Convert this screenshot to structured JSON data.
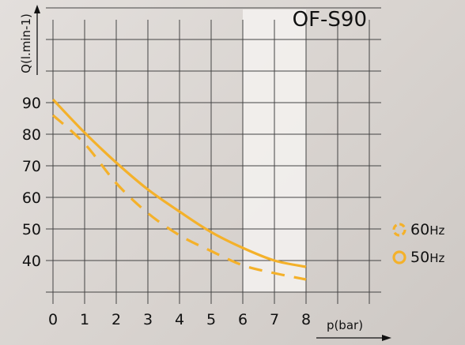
{
  "chart_data": {
    "type": "line",
    "title": "OF-S90",
    "xlabel": "p(bar)",
    "ylabel": "Q(l.min-1)",
    "xlim": [
      0,
      10
    ],
    "ylim": [
      30,
      120
    ],
    "x_ticks": [
      0,
      1,
      2,
      3,
      4,
      5,
      6,
      7,
      8
    ],
    "y_ticks": [
      40,
      50,
      60,
      70,
      80,
      90
    ],
    "grid": true,
    "highlight_band_x": [
      6,
      8
    ],
    "legend_position": "right",
    "series": [
      {
        "name": "60Hz",
        "style": "dashed",
        "color": "#f4b12a",
        "x": [
          0,
          1,
          2,
          3,
          4,
          5,
          6,
          7,
          8
        ],
        "y": [
          86,
          77,
          64.5,
          55,
          48,
          43,
          38.5,
          36,
          34
        ]
      },
      {
        "name": "50Hz",
        "style": "solid",
        "color": "#f4b12a",
        "x": [
          0,
          1,
          2,
          3,
          4,
          5,
          6,
          7,
          8
        ],
        "y": [
          91,
          80.5,
          71,
          62.5,
          55.5,
          49,
          44,
          40,
          38
        ]
      }
    ]
  },
  "legend": {
    "items": [
      {
        "number": "60",
        "unit": "Hz",
        "style": "dashed"
      },
      {
        "number": "50",
        "unit": "Hz",
        "style": "solid"
      }
    ]
  }
}
